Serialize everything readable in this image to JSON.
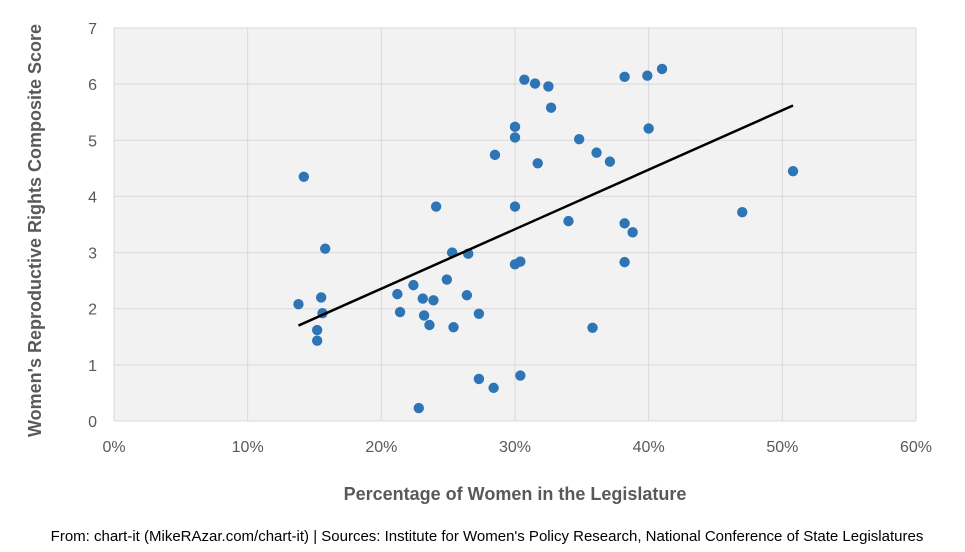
{
  "chart_data": {
    "type": "scatter",
    "title": "",
    "xlabel": "Percentage of Women in the Legislature",
    "ylabel": "Women's Reproductive Rights Composite Score",
    "xlim": [
      0,
      0.6
    ],
    "ylim": [
      0,
      7
    ],
    "x_ticks": [
      0,
      0.1,
      0.2,
      0.3,
      0.4,
      0.5,
      0.6
    ],
    "x_tick_labels": [
      "0%",
      "10%",
      "20%",
      "30%",
      "40%",
      "50%",
      "60%"
    ],
    "y_ticks": [
      0,
      1,
      2,
      3,
      4,
      5,
      6,
      7
    ],
    "y_tick_labels": [
      "0",
      "1",
      "2",
      "3",
      "4",
      "5",
      "6",
      "7"
    ],
    "grid": true,
    "colors": {
      "marker": "#2e75b6",
      "trendline": "#000000",
      "grid": "#d9d9d9",
      "plot_background": "#f2f2f2"
    },
    "trendline": {
      "x": [
        0.138,
        0.508
      ],
      "y": [
        1.7,
        5.62
      ]
    },
    "points": [
      {
        "x": 0.138,
        "y": 2.08
      },
      {
        "x": 0.142,
        "y": 4.35
      },
      {
        "x": 0.152,
        "y": 1.62
      },
      {
        "x": 0.152,
        "y": 1.43
      },
      {
        "x": 0.155,
        "y": 2.2
      },
      {
        "x": 0.156,
        "y": 1.92
      },
      {
        "x": 0.158,
        "y": 3.07
      },
      {
        "x": 0.212,
        "y": 2.26
      },
      {
        "x": 0.214,
        "y": 1.94
      },
      {
        "x": 0.224,
        "y": 2.42
      },
      {
        "x": 0.228,
        "y": 0.23
      },
      {
        "x": 0.231,
        "y": 2.18
      },
      {
        "x": 0.232,
        "y": 1.88
      },
      {
        "x": 0.236,
        "y": 1.71
      },
      {
        "x": 0.239,
        "y": 2.15
      },
      {
        "x": 0.241,
        "y": 3.82
      },
      {
        "x": 0.249,
        "y": 2.52
      },
      {
        "x": 0.253,
        "y": 3.0
      },
      {
        "x": 0.254,
        "y": 1.67
      },
      {
        "x": 0.264,
        "y": 2.24
      },
      {
        "x": 0.265,
        "y": 2.98
      },
      {
        "x": 0.273,
        "y": 1.91
      },
      {
        "x": 0.273,
        "y": 0.75
      },
      {
        "x": 0.284,
        "y": 0.59
      },
      {
        "x": 0.285,
        "y": 4.74
      },
      {
        "x": 0.3,
        "y": 5.24
      },
      {
        "x": 0.3,
        "y": 5.05
      },
      {
        "x": 0.3,
        "y": 3.82
      },
      {
        "x": 0.3,
        "y": 2.79
      },
      {
        "x": 0.304,
        "y": 2.84
      },
      {
        "x": 0.304,
        "y": 0.81
      },
      {
        "x": 0.307,
        "y": 6.08
      },
      {
        "x": 0.315,
        "y": 6.01
      },
      {
        "x": 0.317,
        "y": 4.59
      },
      {
        "x": 0.325,
        "y": 5.96
      },
      {
        "x": 0.327,
        "y": 5.58
      },
      {
        "x": 0.34,
        "y": 3.56
      },
      {
        "x": 0.348,
        "y": 5.02
      },
      {
        "x": 0.358,
        "y": 1.66
      },
      {
        "x": 0.361,
        "y": 4.78
      },
      {
        "x": 0.371,
        "y": 4.62
      },
      {
        "x": 0.382,
        "y": 6.13
      },
      {
        "x": 0.382,
        "y": 3.52
      },
      {
        "x": 0.382,
        "y": 2.83
      },
      {
        "x": 0.388,
        "y": 3.36
      },
      {
        "x": 0.399,
        "y": 6.15
      },
      {
        "x": 0.4,
        "y": 5.21
      },
      {
        "x": 0.41,
        "y": 6.27
      },
      {
        "x": 0.47,
        "y": 3.72
      },
      {
        "x": 0.508,
        "y": 4.45
      }
    ]
  },
  "source_text": "From: chart-it (MikeRAzar.com/chart-it) | Sources: Institute for Women's Policy Research, National Conference of State Legislatures"
}
